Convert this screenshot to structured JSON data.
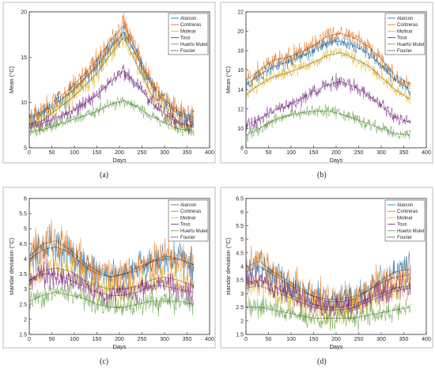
{
  "legend_entries": [
    "Alarcon",
    "Contreras",
    "Molinar",
    "Tous",
    "Huerto Mulet",
    "Fourier"
  ],
  "colors": {
    "Alarcon": "#1f77b4",
    "Contreras": "#e8741a",
    "Molinar": "#e6b82e",
    "Tous": "#7e2f8e",
    "Huerto Mulet": "#6aa84f",
    "Fourier": "#000000"
  },
  "chart_data": [
    {
      "panel": "a",
      "caption": "(a)",
      "type": "line",
      "xlabel": "Days",
      "ylabel": "Mean (°C)",
      "xlim": [
        0,
        400
      ],
      "ylim": [
        5,
        20
      ],
      "xticks": [
        0,
        50,
        100,
        150,
        200,
        250,
        300,
        350,
        400
      ],
      "yticks": [
        5,
        10,
        15,
        20
      ],
      "x": [
        1,
        30,
        60,
        90,
        120,
        150,
        180,
        210,
        240,
        270,
        300,
        330,
        365
      ],
      "series": [
        {
          "name": "Alarcon",
          "values": [
            8.3,
            8.8,
            10.0,
            11.0,
            12.5,
            14.0,
            16.0,
            17.8,
            15.0,
            12.0,
            10.0,
            8.7,
            8.0
          ],
          "noise": 0.9
        },
        {
          "name": "Contreras",
          "values": [
            8.5,
            9.0,
            10.3,
            11.5,
            13.0,
            14.7,
            16.8,
            18.5,
            15.5,
            12.3,
            10.3,
            9.0,
            8.3
          ],
          "noise": 1.0
        },
        {
          "name": "Molinar",
          "values": [
            7.6,
            8.0,
            9.2,
            10.3,
            11.7,
            13.2,
            15.3,
            17.2,
            14.0,
            11.0,
            9.2,
            7.9,
            7.4
          ],
          "noise": 0.9
        },
        {
          "name": "Tous",
          "values": [
            7.3,
            7.7,
            8.3,
            9.0,
            9.8,
            10.8,
            12.3,
            13.5,
            12.0,
            10.0,
            8.8,
            7.7,
            7.3
          ],
          "noise": 0.7
        },
        {
          "name": "Huerto Mulet",
          "values": [
            6.8,
            7.0,
            7.5,
            8.0,
            8.5,
            9.0,
            9.8,
            10.2,
            9.5,
            8.5,
            7.8,
            7.1,
            6.9
          ],
          "noise": 0.5
        }
      ]
    },
    {
      "panel": "b",
      "caption": "(b)",
      "type": "line",
      "xlabel": "Days",
      "ylabel": "Mean (°C)",
      "xlim": [
        0,
        400
      ],
      "ylim": [
        8,
        22
      ],
      "xticks": [
        0,
        50,
        100,
        150,
        200,
        250,
        300,
        350,
        400
      ],
      "yticks": [
        8,
        10,
        12,
        14,
        16,
        18,
        20,
        22
      ],
      "x": [
        1,
        30,
        60,
        90,
        120,
        150,
        180,
        210,
        240,
        270,
        300,
        330,
        365
      ],
      "series": [
        {
          "name": "Alarcon",
          "values": [
            14.5,
            15.5,
            16.3,
            16.8,
            17.3,
            18.0,
            18.8,
            19.0,
            18.5,
            17.8,
            16.5,
            15.0,
            14.0
          ],
          "noise": 0.6
        },
        {
          "name": "Contreras",
          "values": [
            15.0,
            16.0,
            17.0,
            17.3,
            17.8,
            18.5,
            19.5,
            19.8,
            19.3,
            18.5,
            17.2,
            15.5,
            14.5
          ],
          "noise": 0.7
        },
        {
          "name": "Molinar",
          "values": [
            13.5,
            14.5,
            15.3,
            15.7,
            16.2,
            16.8,
            17.5,
            17.8,
            17.2,
            16.5,
            15.3,
            14.0,
            13.0
          ],
          "noise": 0.6
        },
        {
          "name": "Tous",
          "values": [
            10.3,
            11.0,
            11.8,
            12.3,
            13.0,
            13.8,
            14.5,
            14.8,
            14.3,
            13.5,
            12.3,
            11.2,
            10.6
          ],
          "noise": 0.6
        },
        {
          "name": "Huerto Mulet",
          "values": [
            9.3,
            10.0,
            10.8,
            11.3,
            11.6,
            11.8,
            11.8,
            11.5,
            11.0,
            10.5,
            10.0,
            9.5,
            9.3
          ],
          "noise": 0.5
        }
      ]
    },
    {
      "panel": "c",
      "caption": "(c)",
      "type": "line",
      "xlabel": "Days",
      "ylabel": "standar deviation (°C)",
      "xlim": [
        0,
        400
      ],
      "ylim": [
        1.5,
        6
      ],
      "xticks": [
        0,
        50,
        100,
        150,
        200,
        250,
        300,
        350,
        400
      ],
      "yticks": [
        1.5,
        2,
        2.5,
        3,
        3.5,
        4,
        4.5,
        5,
        5.5,
        6
      ],
      "x": [
        1,
        30,
        60,
        90,
        120,
        150,
        180,
        210,
        240,
        270,
        300,
        330,
        365
      ],
      "series": [
        {
          "name": "Alarcon",
          "values": [
            4.0,
            4.3,
            4.4,
            4.2,
            3.8,
            3.5,
            3.4,
            3.5,
            3.7,
            3.9,
            4.0,
            4.0,
            3.8
          ],
          "noise": 0.45
        },
        {
          "name": "Contreras",
          "values": [
            4.1,
            4.5,
            4.6,
            4.3,
            3.9,
            3.6,
            3.4,
            3.5,
            3.6,
            3.9,
            4.1,
            4.0,
            3.8
          ],
          "noise": 0.5
        },
        {
          "name": "Molinar",
          "values": [
            3.3,
            3.6,
            3.7,
            3.6,
            3.3,
            3.1,
            3.0,
            3.0,
            3.1,
            3.3,
            3.4,
            3.3,
            3.1
          ],
          "noise": 0.4
        },
        {
          "name": "Tous",
          "values": [
            3.3,
            3.5,
            3.5,
            3.3,
            3.1,
            2.9,
            2.8,
            2.8,
            2.9,
            3.1,
            3.1,
            3.0,
            2.9
          ],
          "noise": 0.35
        },
        {
          "name": "Huerto Mulet",
          "values": [
            2.6,
            2.8,
            2.9,
            2.8,
            2.7,
            2.5,
            2.4,
            2.4,
            2.5,
            2.6,
            2.6,
            2.6,
            2.5
          ],
          "noise": 0.3
        }
      ]
    },
    {
      "panel": "d",
      "caption": "(d)",
      "type": "line",
      "xlabel": "Days",
      "ylabel": "standar deviation (°C)",
      "xlim": [
        0,
        400
      ],
      "ylim": [
        1.5,
        6.5
      ],
      "xticks": [
        0,
        50,
        100,
        150,
        200,
        250,
        300,
        350,
        400
      ],
      "yticks": [
        1.5,
        2,
        2.5,
        3,
        3.5,
        4,
        4.5,
        5,
        5.5,
        6,
        6.5
      ],
      "x": [
        1,
        30,
        60,
        90,
        120,
        150,
        180,
        210,
        240,
        270,
        300,
        330,
        365
      ],
      "series": [
        {
          "name": "Alarcon",
          "values": [
            3.8,
            4.0,
            3.7,
            3.4,
            3.1,
            2.9,
            2.8,
            2.8,
            2.9,
            3.1,
            3.5,
            3.8,
            3.9
          ],
          "noise": 0.4
        },
        {
          "name": "Contreras",
          "values": [
            4.0,
            4.2,
            3.8,
            3.5,
            3.2,
            2.9,
            2.7,
            2.7,
            2.8,
            3.1,
            3.4,
            3.6,
            3.7
          ],
          "noise": 0.5
        },
        {
          "name": "Molinar",
          "values": [
            3.2,
            3.3,
            3.1,
            2.9,
            2.7,
            2.5,
            2.4,
            2.4,
            2.5,
            2.7,
            2.9,
            3.1,
            3.2
          ],
          "noise": 0.4
        },
        {
          "name": "Tous",
          "values": [
            3.4,
            3.5,
            3.3,
            3.0,
            2.8,
            2.6,
            2.5,
            2.5,
            2.6,
            2.8,
            3.0,
            3.2,
            3.3
          ],
          "noise": 0.35
        },
        {
          "name": "Huerto Mulet",
          "values": [
            2.5,
            2.5,
            2.4,
            2.3,
            2.2,
            2.1,
            2.1,
            2.1,
            2.1,
            2.2,
            2.3,
            2.4,
            2.5
          ],
          "noise": 0.3
        }
      ]
    }
  ]
}
